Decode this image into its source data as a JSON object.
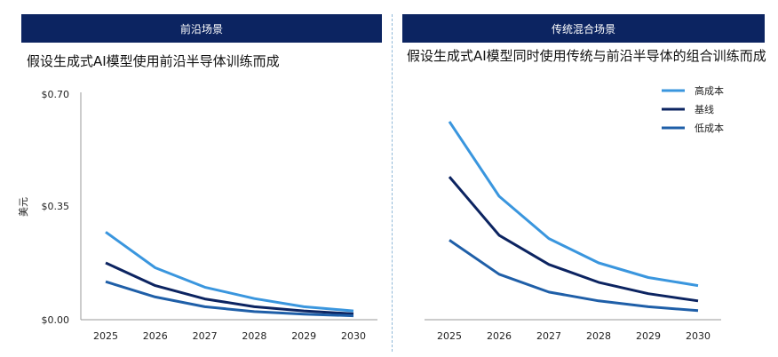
{
  "panels": {
    "left": {
      "banner": "前沿场景",
      "subtitle": "假设生成式AI模型使用前沿半导体训练而成"
    },
    "right": {
      "banner": "传统混合场景",
      "subtitle": "假设生成式AI模型同时使用传统与前沿半导体的组合训练而成"
    }
  },
  "legend": {
    "high": "高成本",
    "base": "基线",
    "low": "低成本"
  },
  "colors": {
    "banner": "#0c2461",
    "high": "#3a96de",
    "base": "#0c2461",
    "low": "#1f5fa8"
  },
  "chart_data": [
    {
      "type": "line",
      "title": "假设生成式AI模型使用前沿半导体训练而成",
      "ylabel": "美元",
      "xlabel": "",
      "x": [
        "2025",
        "2026",
        "2027",
        "2028",
        "2029",
        "2030"
      ],
      "ylim": [
        0,
        0.7
      ],
      "yticks": [
        "$0.00",
        "$0.35",
        "$0.70"
      ],
      "series": [
        {
          "name": "高成本",
          "values": [
            0.27,
            0.16,
            0.1,
            0.065,
            0.04,
            0.027
          ]
        },
        {
          "name": "基线",
          "values": [
            0.175,
            0.105,
            0.064,
            0.04,
            0.027,
            0.018
          ]
        },
        {
          "name": "低成本",
          "values": [
            0.117,
            0.07,
            0.04,
            0.025,
            0.017,
            0.012
          ]
        }
      ]
    },
    {
      "type": "line",
      "title": "假设生成式AI模型同时使用传统与前沿半导体的组合训练而成",
      "ylabel": "",
      "xlabel": "",
      "x": [
        "2025",
        "2026",
        "2027",
        "2028",
        "2029",
        "2030"
      ],
      "ylim": [
        0,
        0.7
      ],
      "series": [
        {
          "name": "高成本",
          "values": [
            0.61,
            0.38,
            0.25,
            0.175,
            0.13,
            0.105
          ]
        },
        {
          "name": "基线",
          "values": [
            0.44,
            0.26,
            0.17,
            0.115,
            0.08,
            0.058
          ]
        },
        {
          "name": "低成本",
          "values": [
            0.245,
            0.14,
            0.085,
            0.058,
            0.04,
            0.028
          ]
        }
      ]
    }
  ]
}
